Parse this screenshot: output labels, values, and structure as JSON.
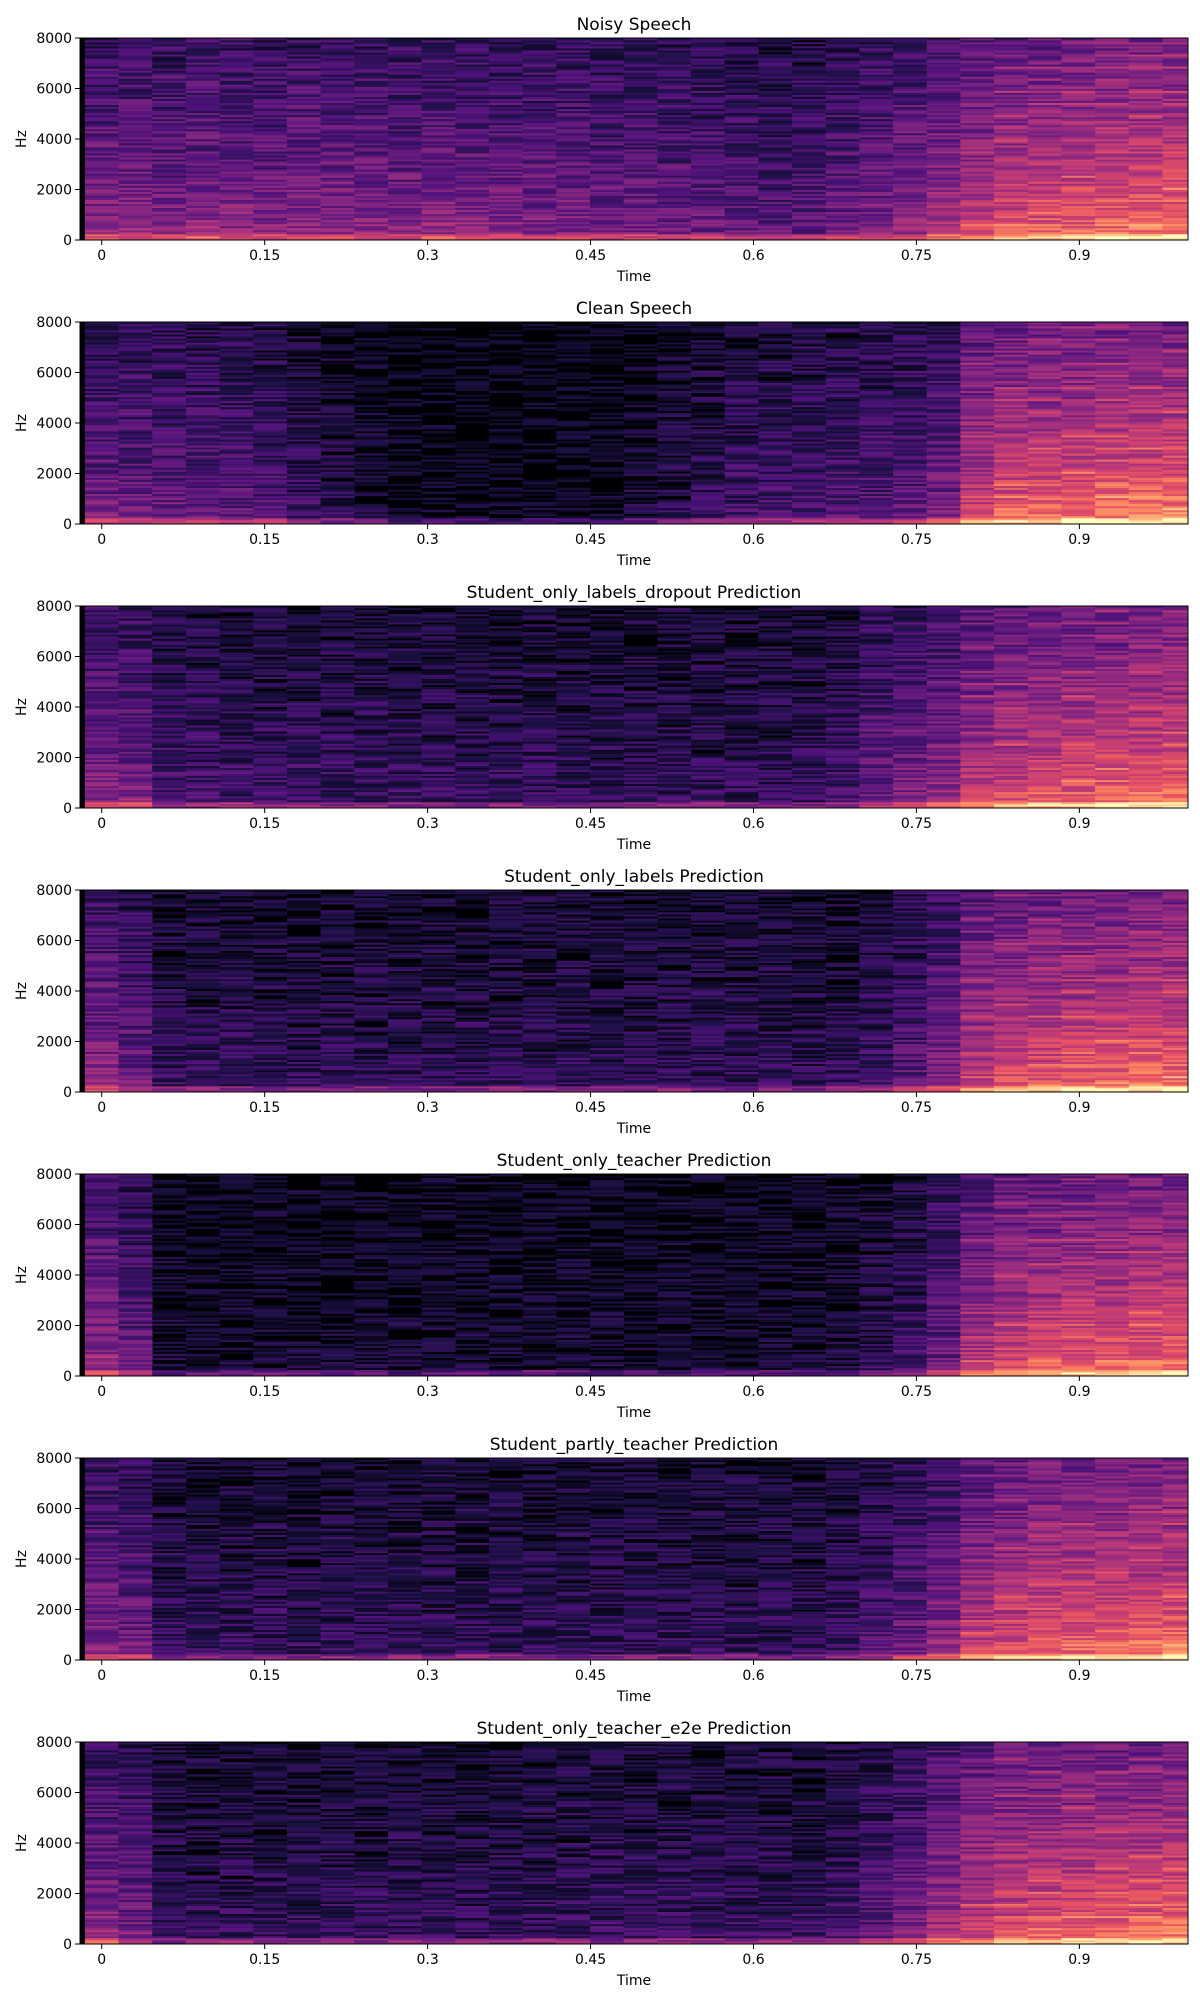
{
  "chart_data": [
    {
      "type": "heatmap",
      "title": "Noisy Speech",
      "xlabel": "Time",
      "ylabel": "Hz",
      "xlim": [
        -0.02,
        1.0
      ],
      "ylim": [
        0,
        8000
      ],
      "xticks": [
        "0",
        "0.15",
        "0.3",
        "0.45",
        "0.6",
        "0.75",
        "0.9"
      ],
      "yticks": [
        "0",
        "2000",
        "4000",
        "6000",
        "8000"
      ],
      "colormap": "magma",
      "frame_times": [
        0,
        0.031,
        0.062,
        0.093,
        0.124,
        0.155,
        0.186,
        0.217,
        0.248,
        0.279,
        0.31,
        0.341,
        0.372,
        0.403,
        0.434,
        0.465,
        0.496,
        0.527,
        0.558,
        0.589,
        0.62,
        0.651,
        0.682,
        0.713,
        0.744,
        0.775,
        0.806,
        0.837,
        0.868,
        0.899,
        0.93,
        0.961,
        0.992
      ],
      "frame_energy": [
        0.45,
        0.44,
        0.42,
        0.46,
        0.43,
        0.42,
        0.45,
        0.44,
        0.43,
        0.42,
        0.44,
        0.43,
        0.42,
        0.41,
        0.4,
        0.38,
        0.39,
        0.36,
        0.35,
        0.33,
        0.3,
        0.32,
        0.36,
        0.42,
        0.47,
        0.53,
        0.6,
        0.66,
        0.7,
        0.72,
        0.74,
        0.76,
        0.78
      ]
    },
    {
      "type": "heatmap",
      "title": "Clean Speech",
      "xlabel": "Time",
      "ylabel": "Hz",
      "xlim": [
        -0.02,
        1.0
      ],
      "ylim": [
        0,
        8000
      ],
      "xticks": [
        "0",
        "0.15",
        "0.3",
        "0.45",
        "0.6",
        "0.75",
        "0.9"
      ],
      "yticks": [
        "0",
        "2000",
        "4000",
        "6000",
        "8000"
      ],
      "colormap": "magma",
      "frame_times": [
        0,
        0.031,
        0.062,
        0.093,
        0.124,
        0.155,
        0.186,
        0.217,
        0.248,
        0.279,
        0.31,
        0.341,
        0.372,
        0.403,
        0.434,
        0.465,
        0.496,
        0.527,
        0.558,
        0.589,
        0.62,
        0.651,
        0.682,
        0.713,
        0.744,
        0.775,
        0.806,
        0.837,
        0.868,
        0.899,
        0.93,
        0.961,
        0.992
      ],
      "frame_energy": [
        0.38,
        0.36,
        0.35,
        0.33,
        0.32,
        0.28,
        0.22,
        0.16,
        0.1,
        0.06,
        0.05,
        0.05,
        0.05,
        0.05,
        0.05,
        0.06,
        0.12,
        0.16,
        0.2,
        0.24,
        0.26,
        0.27,
        0.29,
        0.31,
        0.33,
        0.4,
        0.62,
        0.7,
        0.73,
        0.75,
        0.77,
        0.78,
        0.8
      ]
    },
    {
      "type": "heatmap",
      "title": "Student_only_labels_dropout Prediction",
      "xlabel": "Time",
      "ylabel": "Hz",
      "xlim": [
        -0.02,
        1.0
      ],
      "ylim": [
        0,
        8000
      ],
      "xticks": [
        "0",
        "0.15",
        "0.3",
        "0.45",
        "0.6",
        "0.75",
        "0.9"
      ],
      "yticks": [
        "0",
        "2000",
        "4000",
        "6000",
        "8000"
      ],
      "colormap": "magma",
      "frame_times": [
        0,
        0.031,
        0.062,
        0.093,
        0.124,
        0.155,
        0.186,
        0.217,
        0.248,
        0.279,
        0.31,
        0.341,
        0.372,
        0.403,
        0.434,
        0.465,
        0.496,
        0.527,
        0.558,
        0.589,
        0.62,
        0.651,
        0.682,
        0.713,
        0.744,
        0.775,
        0.806,
        0.837,
        0.868,
        0.899,
        0.93,
        0.961,
        0.992
      ],
      "frame_energy": [
        0.42,
        0.4,
        0.26,
        0.25,
        0.24,
        0.24,
        0.23,
        0.23,
        0.22,
        0.22,
        0.22,
        0.21,
        0.21,
        0.21,
        0.2,
        0.2,
        0.2,
        0.2,
        0.2,
        0.2,
        0.2,
        0.21,
        0.25,
        0.36,
        0.42,
        0.47,
        0.58,
        0.64,
        0.68,
        0.7,
        0.72,
        0.74,
        0.76
      ]
    },
    {
      "type": "heatmap",
      "title": "Student_only_labels Prediction",
      "xlabel": "Time",
      "ylabel": "Hz",
      "xlim": [
        -0.02,
        1.0
      ],
      "ylim": [
        0,
        8000
      ],
      "xticks": [
        "0",
        "0.15",
        "0.3",
        "0.45",
        "0.6",
        "0.75",
        "0.9"
      ],
      "yticks": [
        "0",
        "2000",
        "4000",
        "6000",
        "8000"
      ],
      "colormap": "magma",
      "frame_times": [
        0,
        0.031,
        0.062,
        0.093,
        0.124,
        0.155,
        0.186,
        0.217,
        0.248,
        0.279,
        0.31,
        0.341,
        0.372,
        0.403,
        0.434,
        0.465,
        0.496,
        0.527,
        0.558,
        0.589,
        0.62,
        0.651,
        0.682,
        0.713,
        0.744,
        0.775,
        0.806,
        0.837,
        0.868,
        0.899,
        0.93,
        0.961,
        0.992
      ],
      "frame_energy": [
        0.44,
        0.36,
        0.2,
        0.2,
        0.2,
        0.19,
        0.19,
        0.19,
        0.19,
        0.19,
        0.19,
        0.19,
        0.19,
        0.19,
        0.19,
        0.19,
        0.19,
        0.19,
        0.19,
        0.19,
        0.19,
        0.19,
        0.2,
        0.24,
        0.3,
        0.42,
        0.6,
        0.66,
        0.7,
        0.72,
        0.74,
        0.76,
        0.77
      ]
    },
    {
      "type": "heatmap",
      "title": "Student_only_teacher Prediction",
      "xlabel": "Time",
      "ylabel": "Hz",
      "xlim": [
        -0.02,
        1.0
      ],
      "ylim": [
        0,
        8000
      ],
      "xticks": [
        "0",
        "0.15",
        "0.3",
        "0.45",
        "0.6",
        "0.75",
        "0.9"
      ],
      "yticks": [
        "0",
        "2000",
        "4000",
        "6000",
        "8000"
      ],
      "colormap": "magma",
      "frame_times": [
        0,
        0.031,
        0.062,
        0.093,
        0.124,
        0.155,
        0.186,
        0.217,
        0.248,
        0.279,
        0.31,
        0.341,
        0.372,
        0.403,
        0.434,
        0.465,
        0.496,
        0.527,
        0.558,
        0.589,
        0.62,
        0.651,
        0.682,
        0.713,
        0.744,
        0.775,
        0.806,
        0.837,
        0.868,
        0.899,
        0.93,
        0.961,
        0.992
      ],
      "frame_energy": [
        0.46,
        0.34,
        0.1,
        0.1,
        0.1,
        0.1,
        0.1,
        0.1,
        0.1,
        0.1,
        0.1,
        0.1,
        0.1,
        0.1,
        0.1,
        0.1,
        0.1,
        0.1,
        0.1,
        0.1,
        0.1,
        0.1,
        0.12,
        0.18,
        0.24,
        0.36,
        0.56,
        0.64,
        0.68,
        0.7,
        0.72,
        0.74,
        0.76
      ]
    },
    {
      "type": "heatmap",
      "title": "Student_partly_teacher Prediction",
      "xlabel": "Time",
      "ylabel": "Hz",
      "xlim": [
        -0.02,
        1.0
      ],
      "ylim": [
        0,
        8000
      ],
      "xticks": [
        "0",
        "0.15",
        "0.3",
        "0.45",
        "0.6",
        "0.75",
        "0.9"
      ],
      "yticks": [
        "0",
        "2000",
        "4000",
        "6000",
        "8000"
      ],
      "colormap": "magma",
      "frame_times": [
        0,
        0.031,
        0.062,
        0.093,
        0.124,
        0.155,
        0.186,
        0.217,
        0.248,
        0.279,
        0.31,
        0.341,
        0.372,
        0.403,
        0.434,
        0.465,
        0.496,
        0.527,
        0.558,
        0.589,
        0.62,
        0.651,
        0.682,
        0.713,
        0.744,
        0.775,
        0.806,
        0.837,
        0.868,
        0.899,
        0.93,
        0.961,
        0.992
      ],
      "frame_energy": [
        0.42,
        0.38,
        0.2,
        0.2,
        0.2,
        0.2,
        0.2,
        0.2,
        0.2,
        0.2,
        0.2,
        0.2,
        0.2,
        0.2,
        0.2,
        0.2,
        0.2,
        0.2,
        0.2,
        0.2,
        0.2,
        0.2,
        0.22,
        0.3,
        0.36,
        0.46,
        0.6,
        0.66,
        0.7,
        0.72,
        0.74,
        0.76,
        0.78
      ]
    },
    {
      "type": "heatmap",
      "title": "Student_only_teacher_e2e Prediction",
      "xlabel": "Time",
      "ylabel": "Hz",
      "xlim": [
        -0.02,
        1.0
      ],
      "ylim": [
        0,
        8000
      ],
      "xticks": [
        "0",
        "0.15",
        "0.3",
        "0.45",
        "0.6",
        "0.75",
        "0.9"
      ],
      "yticks": [
        "0",
        "2000",
        "4000",
        "6000",
        "8000"
      ],
      "colormap": "magma",
      "frame_times": [
        0,
        0.031,
        0.062,
        0.093,
        0.124,
        0.155,
        0.186,
        0.217,
        0.248,
        0.279,
        0.31,
        0.341,
        0.372,
        0.403,
        0.434,
        0.465,
        0.496,
        0.527,
        0.558,
        0.589,
        0.62,
        0.651,
        0.682,
        0.713,
        0.744,
        0.775,
        0.806,
        0.837,
        0.868,
        0.899,
        0.93,
        0.961,
        0.992
      ],
      "frame_energy": [
        0.44,
        0.38,
        0.2,
        0.2,
        0.2,
        0.2,
        0.2,
        0.2,
        0.2,
        0.2,
        0.2,
        0.2,
        0.2,
        0.21,
        0.21,
        0.22,
        0.22,
        0.22,
        0.22,
        0.22,
        0.22,
        0.22,
        0.24,
        0.32,
        0.4,
        0.52,
        0.62,
        0.66,
        0.7,
        0.72,
        0.74,
        0.76,
        0.78
      ]
    }
  ]
}
